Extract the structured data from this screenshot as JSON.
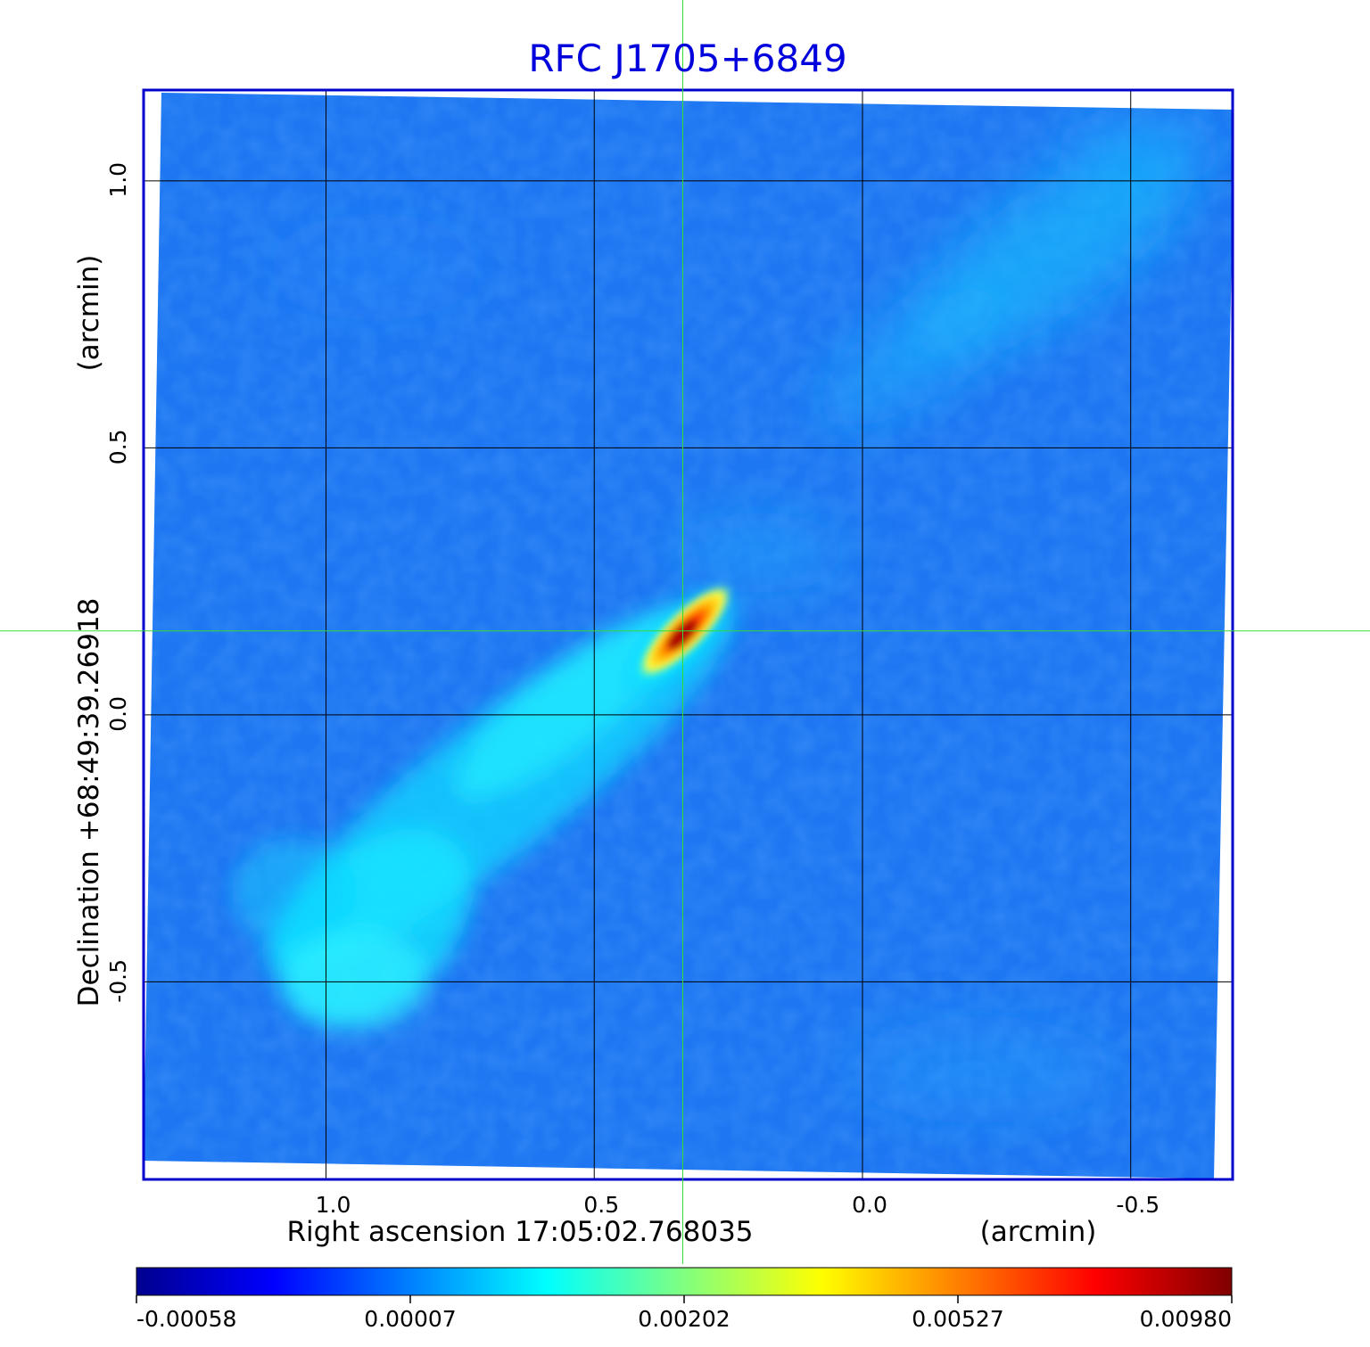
{
  "chart_data": {
    "type": "heatmap",
    "title": "RFC J1705+6849",
    "xlabel": "Right ascension  17:05:02.768035",
    "xunit": "(arcmin)",
    "ylabel": "Declination  +68:49:39.26918",
    "yunit": "(arcmin)",
    "x_ticks": [
      1.0,
      0.5,
      0.0,
      -0.5
    ],
    "y_ticks": [
      1.0,
      0.5,
      0.0,
      -0.5
    ],
    "xlim": [
      1.34,
      -0.69
    ],
    "ylim": [
      -0.87,
      1.17
    ],
    "grid": true,
    "crosshair": {
      "x": 0.335,
      "y": 0.157
    },
    "colorbar": {
      "tick_labels": [
        "-0.00058",
        "0.00007",
        "0.00202",
        "0.00527",
        "0.00980"
      ],
      "colormap": [
        "#00008f",
        "#0000ff",
        "#0080ff",
        "#00ffff",
        "#80ff80",
        "#ffff00",
        "#ff8000",
        "#ff0000",
        "#800000"
      ]
    },
    "features": {
      "core": {
        "x": 0.34,
        "y": 0.15,
        "peak": 0.0098
      },
      "jet": {
        "from": [
          0.34,
          0.15
        ],
        "to": [
          0.98,
          -0.55
        ],
        "level": 0.0012
      }
    }
  },
  "colors": {
    "title": "#0000dd",
    "frame": "#0000cc",
    "grid": "#000000",
    "crosshair": "#33dd33",
    "background": "#1e74f0"
  }
}
